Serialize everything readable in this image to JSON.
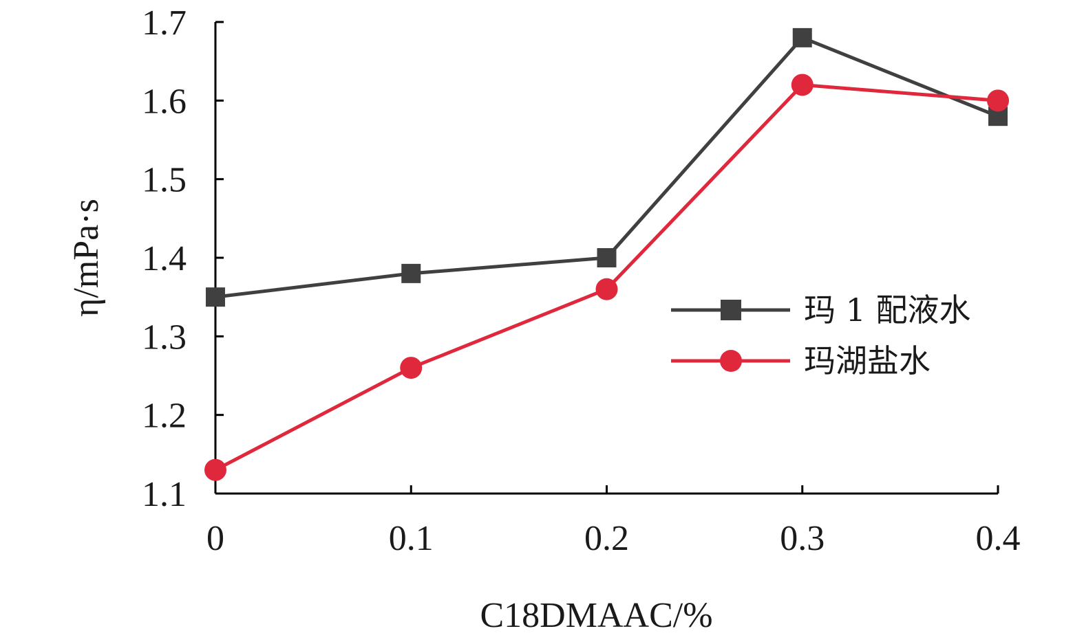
{
  "chart_data": {
    "type": "line",
    "x": [
      0,
      0.1,
      0.2,
      0.3,
      0.4
    ],
    "x_tick_labels": [
      "0",
      "0.1",
      "0.2",
      "0.3",
      "0.4"
    ],
    "xlim": [
      0,
      0.4
    ],
    "ylim": [
      1.1,
      1.7
    ],
    "y_ticks": [
      1.1,
      1.2,
      1.3,
      1.4,
      1.5,
      1.6,
      1.7
    ],
    "y_tick_labels": [
      "1.1",
      "1.2",
      "1.3",
      "1.4",
      "1.5",
      "1.6",
      "1.7"
    ],
    "xlabel": "C18DMAAC/%",
    "ylabel": "η/mPa·s",
    "grid": false,
    "legend_position": "right",
    "series": [
      {
        "name": "玛 1 配液水",
        "values": [
          1.35,
          1.38,
          1.4,
          1.68,
          1.58
        ],
        "color": "#404040",
        "marker": "square"
      },
      {
        "name": "玛湖盐水",
        "values": [
          1.13,
          1.26,
          1.36,
          1.62,
          1.6
        ],
        "color": "#e0283c",
        "marker": "circle"
      }
    ]
  }
}
